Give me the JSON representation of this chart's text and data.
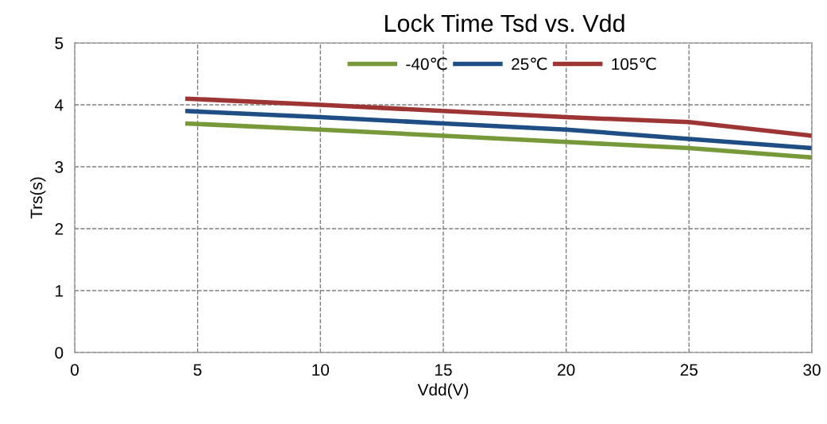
{
  "chart_data": {
    "type": "line",
    "title": "Lock Time Tsd vs. Vdd",
    "xlabel": "Vdd(V)",
    "ylabel": "Trs(s)",
    "x": [
      4.5,
      10,
      15,
      20,
      25,
      30
    ],
    "series": [
      {
        "name": "-40℃",
        "color": "#77993a",
        "values": [
          3.7,
          3.6,
          3.5,
          3.4,
          3.3,
          3.15
        ]
      },
      {
        "name": "25℃",
        "color": "#1f4e85",
        "values": [
          3.9,
          3.8,
          3.7,
          3.6,
          3.45,
          3.3
        ]
      },
      {
        "name": "105℃",
        "color": "#9e3535",
        "values": [
          4.1,
          4.0,
          3.9,
          3.8,
          3.72,
          3.5
        ]
      }
    ],
    "xlim": [
      0,
      30
    ],
    "xticks": [
      0,
      5,
      10,
      15,
      20,
      25,
      30
    ],
    "ylim": [
      0,
      5
    ],
    "yticks": [
      0,
      1,
      2,
      3,
      4,
      5
    ],
    "grid": true,
    "legend": "top",
    "line_style": "solid",
    "marker": "none"
  }
}
